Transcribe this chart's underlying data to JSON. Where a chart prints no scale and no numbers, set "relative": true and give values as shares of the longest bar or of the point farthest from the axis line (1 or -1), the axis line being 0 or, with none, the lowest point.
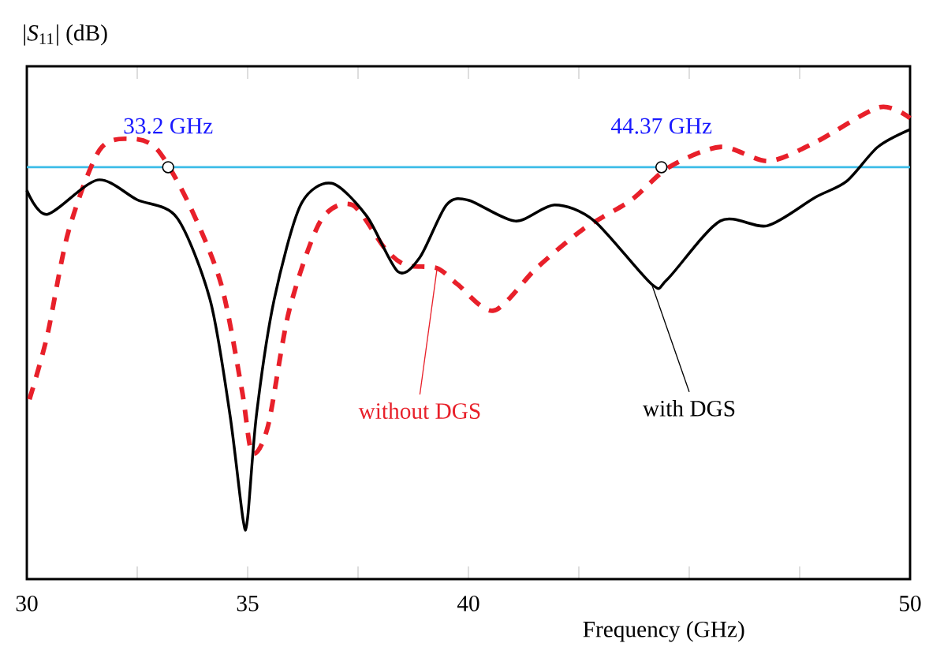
{
  "chart_data": {
    "type": "line",
    "relative": true,
    "xlabel": "Frequency (GHz)",
    "ylabel": "|*S*$_{11}$| (dB)",
    "xlim": [
      30,
      50
    ],
    "xticks": [
      30,
      35,
      40,
      {
        "value": 45,
        "label": null
      },
      50
    ],
    "marker": "none",
    "ref_lines": [
      {
        "axis": "y",
        "value": 0.873,
        "color": "#3dbde8"
      }
    ],
    "annotations": [
      {
        "text": "33.2 GHz",
        "x": 33.2,
        "y": 0.873
      },
      {
        "text": "44.37 GHz",
        "x": 44.37,
        "y": 0.873
      }
    ],
    "series": [
      {
        "name": "without DGS",
        "color": "#e8202a",
        "line_style": "dashed",
        "x": [
          30.06,
          30.46,
          30.94,
          31.65,
          32.37,
          32.96,
          33.68,
          34.4,
          34.87,
          35.1,
          35.46,
          35.94,
          36.65,
          37.37,
          38.1,
          38.57,
          39.29,
          39.75,
          40.57,
          41.54,
          42.6,
          43.68,
          44.54,
          45.71,
          46.79,
          47.86,
          49.3,
          50
        ],
        "values": [
          0.381,
          0.515,
          0.736,
          0.91,
          0.933,
          0.91,
          0.793,
          0.625,
          0.401,
          0.268,
          0.324,
          0.569,
          0.759,
          0.793,
          0.702,
          0.666,
          0.659,
          0.625,
          0.569,
          0.659,
          0.742,
          0.803,
          0.873,
          0.916,
          0.886,
          0.926,
          1,
          0.977
        ]
      },
      {
        "name": "with DGS",
        "color": "#000000",
        "line_style": "solid",
        "x": [
          30,
          30.46,
          31.6,
          32.5,
          33.4,
          34.15,
          34.6,
          34.9,
          35.0,
          35.2,
          35.6,
          36.2,
          36.9,
          37.7,
          38.4,
          38.9,
          39.5,
          40.0,
          41.06,
          41.95,
          42.85,
          44.15,
          44.5,
          45.7,
          46.77,
          47.85,
          48.56,
          49.27,
          50
        ],
        "values": [
          0.824,
          0.773,
          0.846,
          0.804,
          0.766,
          0.592,
          0.348,
          0.124,
          0.13,
          0.348,
          0.592,
          0.793,
          0.839,
          0.769,
          0.652,
          0.682,
          0.793,
          0.803,
          0.759,
          0.793,
          0.759,
          0.625,
          0.635,
          0.759,
          0.749,
          0.809,
          0.843,
          0.916,
          0.953
        ]
      }
    ]
  }
}
